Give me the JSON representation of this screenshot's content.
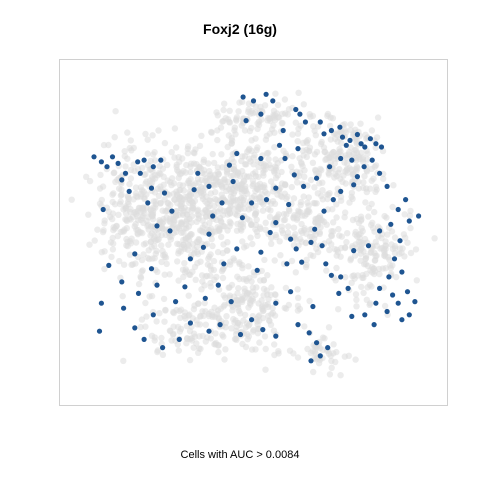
{
  "chart_data": {
    "type": "scatter",
    "title": "Foxj2 (16g)",
    "caption": "Cells with AUC > 0.0084",
    "xlabel": "",
    "ylabel": "",
    "xlim": [
      0,
      100
    ],
    "ylim": [
      0,
      100
    ],
    "grid": false,
    "legend": "none",
    "colors": {
      "background_cells": "#dcdcdc",
      "highlighted_cells": "#1f5591",
      "frame": "#d0d0d0"
    },
    "series": [
      {
        "name": "",
        "color": "#dcdcdc",
        "clusters": [
          {
            "cx": 30,
            "cy": 55,
            "sx": 13,
            "sy": 14,
            "n": 520
          },
          {
            "cx": 48,
            "cy": 63,
            "sx": 10,
            "sy": 10,
            "n": 280
          },
          {
            "cx": 47,
            "cy": 28,
            "sx": 9,
            "sy": 10,
            "n": 210
          },
          {
            "cx": 74,
            "cy": 73,
            "sx": 9,
            "sy": 8,
            "n": 200
          },
          {
            "cx": 82,
            "cy": 45,
            "sx": 7,
            "sy": 10,
            "n": 170
          },
          {
            "cx": 64,
            "cy": 52,
            "sx": 8,
            "sy": 8,
            "n": 130
          },
          {
            "cx": 52,
            "cy": 85,
            "sx": 9,
            "sy": 4,
            "n": 90
          },
          {
            "cx": 17,
            "cy": 62,
            "sx": 6,
            "sy": 14,
            "n": 100
          },
          {
            "cx": 68,
            "cy": 14,
            "sx": 5,
            "sy": 4,
            "n": 45
          },
          {
            "cx": 32,
            "cy": 20,
            "sx": 8,
            "sy": 5,
            "n": 80
          }
        ]
      },
      {
        "name": "",
        "color": "#1f5591",
        "points": [
          [
            47.2,
            91.2
          ],
          [
            50.0,
            90.0
          ],
          [
            52.0,
            86.0
          ],
          [
            48.0,
            84.0
          ],
          [
            53.4,
            92.0
          ],
          [
            55.2,
            90.0
          ],
          [
            61.4,
            87.4
          ],
          [
            64.0,
            83.6
          ],
          [
            62.5,
            86.0
          ],
          [
            68.0,
            83.6
          ],
          [
            71.0,
            81.0
          ],
          [
            69.0,
            80.0
          ],
          [
            73.3,
            82.0
          ],
          [
            74.0,
            79.0
          ],
          [
            76.0,
            78.0
          ],
          [
            78.0,
            79.8
          ],
          [
            79.0,
            77.0
          ],
          [
            81.5,
            78.5
          ],
          [
            83.0,
            77.0
          ],
          [
            84.5,
            76.0
          ],
          [
            80.0,
            76.0
          ],
          [
            75.0,
            76.5
          ],
          [
            73.5,
            72.5
          ],
          [
            76.5,
            72.0
          ],
          [
            79.8,
            70.0
          ],
          [
            82.0,
            72.0
          ],
          [
            78.0,
            67.0
          ],
          [
            84.0,
            68.0
          ],
          [
            86.0,
            64.0
          ],
          [
            77.0,
            64.5
          ],
          [
            70.5,
            70.0
          ],
          [
            73.5,
            62.5
          ],
          [
            71.5,
            60.0
          ],
          [
            69.0,
            56.5
          ],
          [
            63.5,
            64.0
          ],
          [
            61.0,
            67.5
          ],
          [
            58.5,
            72.5
          ],
          [
            57.0,
            76.5
          ],
          [
            62.0,
            75.5
          ],
          [
            67.0,
            66.5
          ],
          [
            7.0,
            73.0
          ],
          [
            9.0,
            71.5
          ],
          [
            10.5,
            70.0
          ],
          [
            12.0,
            73.0
          ],
          [
            13.5,
            71.0
          ],
          [
            15.5,
            68.0
          ],
          [
            14.5,
            66.0
          ],
          [
            18.8,
            71.5
          ],
          [
            20.5,
            72.0
          ],
          [
            19.5,
            68.0
          ],
          [
            23.0,
            70.0
          ],
          [
            25.0,
            72.0
          ],
          [
            22.5,
            63.5
          ],
          [
            21.5,
            59.0
          ],
          [
            16.5,
            62.5
          ],
          [
            9.5,
            57.0
          ],
          [
            26.0,
            62.0
          ],
          [
            28.0,
            56.5
          ],
          [
            24.0,
            52.0
          ],
          [
            27.5,
            50.5
          ],
          [
            35.0,
            68.0
          ],
          [
            34.0,
            63.0
          ],
          [
            38.0,
            64.0
          ],
          [
            39.0,
            55.0
          ],
          [
            41.5,
            59.0
          ],
          [
            43.5,
            70.5
          ],
          [
            45.5,
            74.0
          ],
          [
            44.5,
            65.5
          ],
          [
            52.0,
            72.5
          ],
          [
            56.0,
            63.5
          ],
          [
            59.5,
            58.5
          ],
          [
            56.0,
            53.0
          ],
          [
            52.0,
            44.0
          ],
          [
            51.0,
            38.5
          ],
          [
            54.5,
            50.0
          ],
          [
            60.0,
            48.0
          ],
          [
            61.5,
            45.0
          ],
          [
            63.0,
            41.0
          ],
          [
            59.0,
            40.5
          ],
          [
            65.5,
            47.0
          ],
          [
            66.5,
            51.0
          ],
          [
            68.5,
            46.0
          ],
          [
            69.5,
            40.5
          ],
          [
            71.0,
            37.0
          ],
          [
            73.5,
            36.5
          ],
          [
            75.5,
            33.0
          ],
          [
            73.0,
            31.5
          ],
          [
            77.0,
            44.5
          ],
          [
            81.0,
            46.0
          ],
          [
            84.0,
            50.5
          ],
          [
            87.0,
            52.5
          ],
          [
            89.0,
            57.0
          ],
          [
            91.0,
            60.0
          ],
          [
            94.5,
            55.0
          ],
          [
            92.0,
            53.5
          ],
          [
            89.5,
            47.5
          ],
          [
            88.0,
            42.0
          ],
          [
            90.0,
            38.0
          ],
          [
            86.5,
            36.5
          ],
          [
            84.0,
            33.0
          ],
          [
            87.5,
            31.0
          ],
          [
            89.0,
            28.5
          ],
          [
            91.5,
            32.0
          ],
          [
            93.5,
            29.0
          ],
          [
            92.0,
            25.0
          ],
          [
            90.0,
            23.5
          ],
          [
            86.0,
            26.0
          ],
          [
            83.0,
            28.5
          ],
          [
            80.0,
            25.0
          ],
          [
            82.5,
            22.0
          ],
          [
            76.5,
            24.5
          ],
          [
            62.0,
            22.0
          ],
          [
            65.0,
            19.5
          ],
          [
            67.0,
            16.5
          ],
          [
            70.0,
            15.0
          ],
          [
            68.0,
            12.5
          ],
          [
            65.5,
            11.0
          ],
          [
            56.0,
            18.5
          ],
          [
            52.5,
            20.5
          ],
          [
            49.5,
            23.5
          ],
          [
            46.5,
            19.0
          ],
          [
            41.0,
            22.0
          ],
          [
            38.0,
            20.0
          ],
          [
            33.0,
            22.5
          ],
          [
            30.0,
            17.5
          ],
          [
            25.5,
            15.0
          ],
          [
            20.5,
            17.5
          ],
          [
            18.0,
            21.0
          ],
          [
            23.0,
            25.0
          ],
          [
            15.0,
            27.0
          ],
          [
            9.0,
            28.5
          ],
          [
            8.5,
            20.0
          ],
          [
            14.5,
            35.0
          ],
          [
            19.0,
            31.5
          ],
          [
            24.0,
            34.0
          ],
          [
            29.0,
            29.0
          ],
          [
            31.5,
            33.5
          ],
          [
            37.0,
            30.0
          ],
          [
            40.5,
            34.0
          ],
          [
            44.0,
            29.0
          ],
          [
            33.0,
            42.0
          ],
          [
            36.5,
            45.5
          ],
          [
            42.0,
            40.5
          ],
          [
            45.5,
            45.0
          ],
          [
            38.0,
            49.5
          ],
          [
            22.5,
            39.0
          ],
          [
            18.0,
            43.5
          ],
          [
            11.0,
            40.0
          ],
          [
            47.0,
            54.5
          ],
          [
            49.5,
            59.0
          ],
          [
            53.5,
            60.0
          ],
          [
            58.0,
            81.0
          ],
          [
            60.0,
            32.0
          ],
          [
            56.0,
            28.5
          ],
          [
            66.0,
            27.5
          ]
        ]
      }
    ]
  }
}
